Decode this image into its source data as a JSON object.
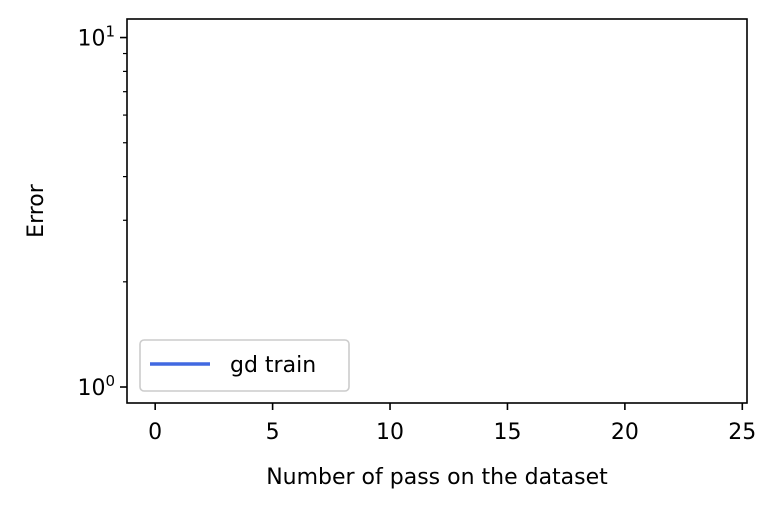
{
  "chart_data": {
    "type": "line",
    "title": "",
    "xlabel": "Number of pass on the dataset",
    "ylabel": "Error",
    "x_scale": "linear",
    "y_scale": "log",
    "xlim": [
      -1.2,
      25.2
    ],
    "ylim": [
      0.9,
      11.3
    ],
    "x_ticks": [
      0,
      5,
      10,
      15,
      20,
      25
    ],
    "x_tick_labels": [
      "0",
      "5",
      "10",
      "15",
      "20",
      "25"
    ],
    "y_ticks": [
      1,
      10
    ],
    "y_tick_labels": [
      {
        "base": "10",
        "exp": "0"
      },
      {
        "base": "10",
        "exp": "1"
      }
    ],
    "y_minor_ticks": [
      2,
      3,
      4,
      5,
      6,
      7,
      8,
      9
    ],
    "grid": false,
    "legend_position": "lower left",
    "series": [
      {
        "name": "gd train",
        "color": "#4169e1",
        "x": [],
        "y": []
      }
    ]
  }
}
